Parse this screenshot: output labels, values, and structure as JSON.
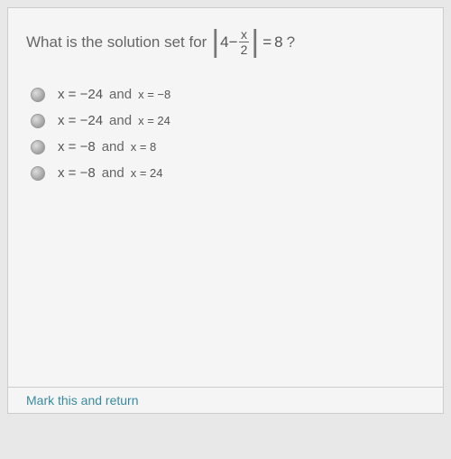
{
  "question": {
    "prefix": "What is the solution set for",
    "abs_left": "4",
    "abs_op": "−",
    "frac_num": "x",
    "frac_den": "2",
    "eq": "=",
    "rhs": "8",
    "q": "?"
  },
  "options": [
    {
      "part1": "x = −24",
      "and": "and",
      "part2": "x = −8"
    },
    {
      "part1": "x = −24",
      "and": "and",
      "part2": "x = 24"
    },
    {
      "part1": "x = −8",
      "and": "and",
      "part2": "x = 8"
    },
    {
      "part1": "x = −8",
      "and": "and",
      "part2": "x = 24"
    }
  ],
  "footer_text": "Mark this and return",
  "colors": {
    "bg": "#f5f5f5",
    "text": "#666",
    "footer": "#3a8a9e"
  }
}
